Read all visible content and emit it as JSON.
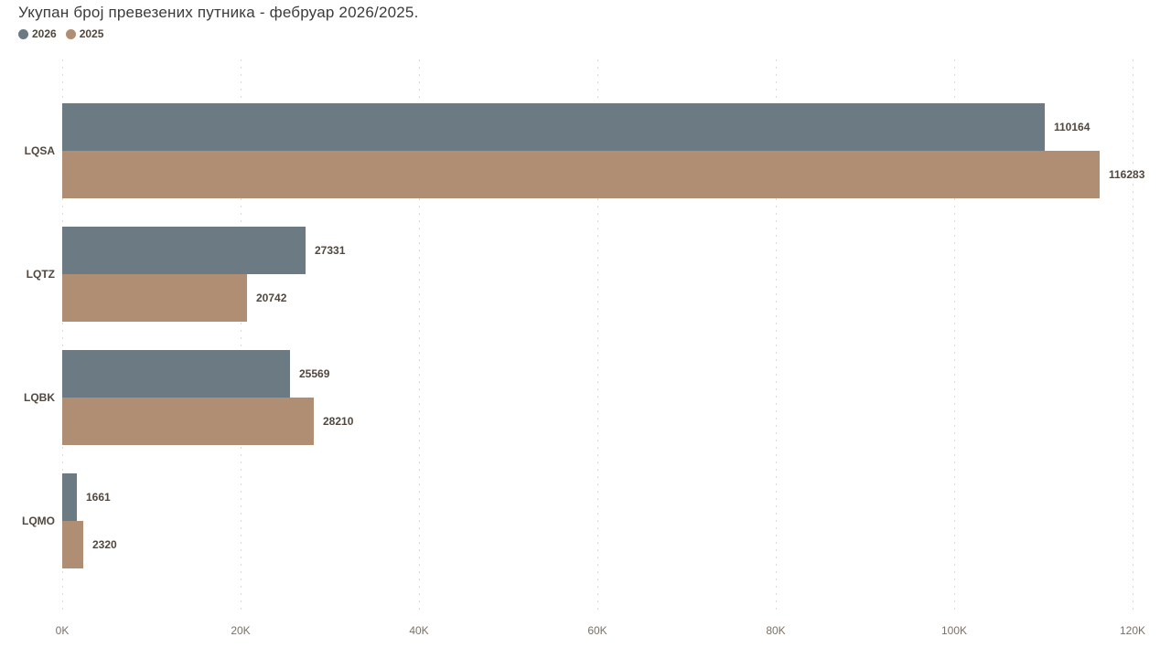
{
  "chart_data": {
    "type": "bar",
    "orientation": "horizontal",
    "title": "Укупан број превезених путника - фебруар 2026/2025.",
    "categories": [
      "LQSA",
      "LQTZ",
      "LQBK",
      "LQMO"
    ],
    "series": [
      {
        "name": "2026",
        "color": "#6b7a83",
        "values": [
          110164,
          27331,
          25569,
          1661
        ]
      },
      {
        "name": "2025",
        "color": "#b08e73",
        "values": [
          116283,
          20742,
          28210,
          2320
        ]
      }
    ],
    "xlim": [
      0,
      120000
    ],
    "xticks": [
      {
        "value": 0,
        "label": "0K"
      },
      {
        "value": 20000,
        "label": "20K"
      },
      {
        "value": 40000,
        "label": "40K"
      },
      {
        "value": 60000,
        "label": "60K"
      },
      {
        "value": 80000,
        "label": "80K"
      },
      {
        "value": 100000,
        "label": "100K"
      },
      {
        "value": 120000,
        "label": "120K"
      }
    ],
    "grid": "vertical-dotted",
    "legend_position": "top-left",
    "data_labels": "outside-end"
  },
  "colors": {
    "background": "#ffffff",
    "title_text": "#3b3b3b",
    "data_label_text": "#51473e",
    "category_label_text": "#51473e",
    "axis_label_text": "#7b7166",
    "gridline": "#dcdad7",
    "series_2026": "#6b7a83",
    "series_2025": "#b08e73"
  }
}
